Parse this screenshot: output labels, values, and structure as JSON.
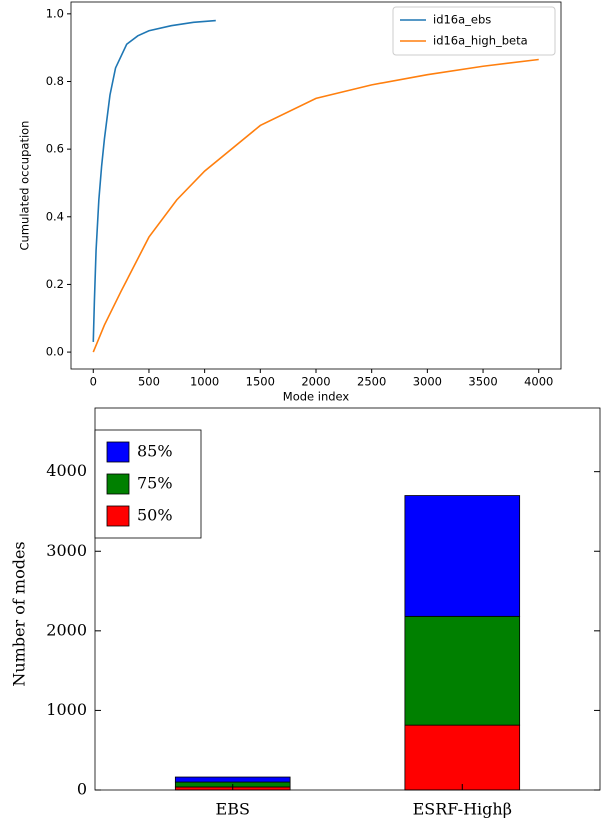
{
  "chart_data": [
    {
      "type": "line",
      "xlabel": "Mode index",
      "ylabel": "Cumulated occupation",
      "xlim": [
        -200,
        4200
      ],
      "ylim": [
        -0.05,
        1.035
      ],
      "xticks": [
        0,
        500,
        1000,
        1500,
        2000,
        2500,
        3000,
        3500,
        4000
      ],
      "yticks": [
        {
          "value": 0,
          "label": "0.0"
        },
        0.2,
        0.4,
        0.6,
        0.8,
        {
          "value": 1,
          "label": "1.0"
        }
      ],
      "legend": "upper right",
      "series": [
        {
          "name": "id16a_ebs",
          "color": "#1f77b4",
          "x": [
            0,
            10,
            25,
            50,
            75,
            100,
            150,
            200,
            300,
            400,
            500,
            700,
            900,
            1100
          ],
          "values": [
            0.03,
            0.15,
            0.3,
            0.45,
            0.55,
            0.63,
            0.76,
            0.84,
            0.91,
            0.935,
            0.95,
            0.965,
            0.975,
            0.98
          ]
        },
        {
          "name": "id16a_high_beta",
          "color": "#ff7f0e",
          "x": [
            0,
            100,
            250,
            500,
            750,
            1000,
            1500,
            2000,
            2500,
            3000,
            3500,
            4000
          ],
          "values": [
            0,
            0.08,
            0.18,
            0.34,
            0.45,
            0.535,
            0.67,
            0.75,
            0.79,
            0.82,
            0.845,
            0.865
          ]
        }
      ]
    },
    {
      "type": "stacked-bar",
      "ylabel": "Number of modes",
      "categories": [
        "EBS",
        "ESRF-Highβ"
      ],
      "ylim": [
        0,
        4800
      ],
      "yticks": [
        0,
        1000,
        2000,
        3000,
        4000
      ],
      "legend": "upper left",
      "series": [
        {
          "name": "50%",
          "color": "#ff0000",
          "values": [
            38,
            815
          ]
        },
        {
          "name": "75%",
          "color": "#008000",
          "values": [
            62,
            1367
          ]
        },
        {
          "name": "85%",
          "color": "#0000ff",
          "values": [
            63,
            1518
          ]
        }
      ]
    }
  ]
}
